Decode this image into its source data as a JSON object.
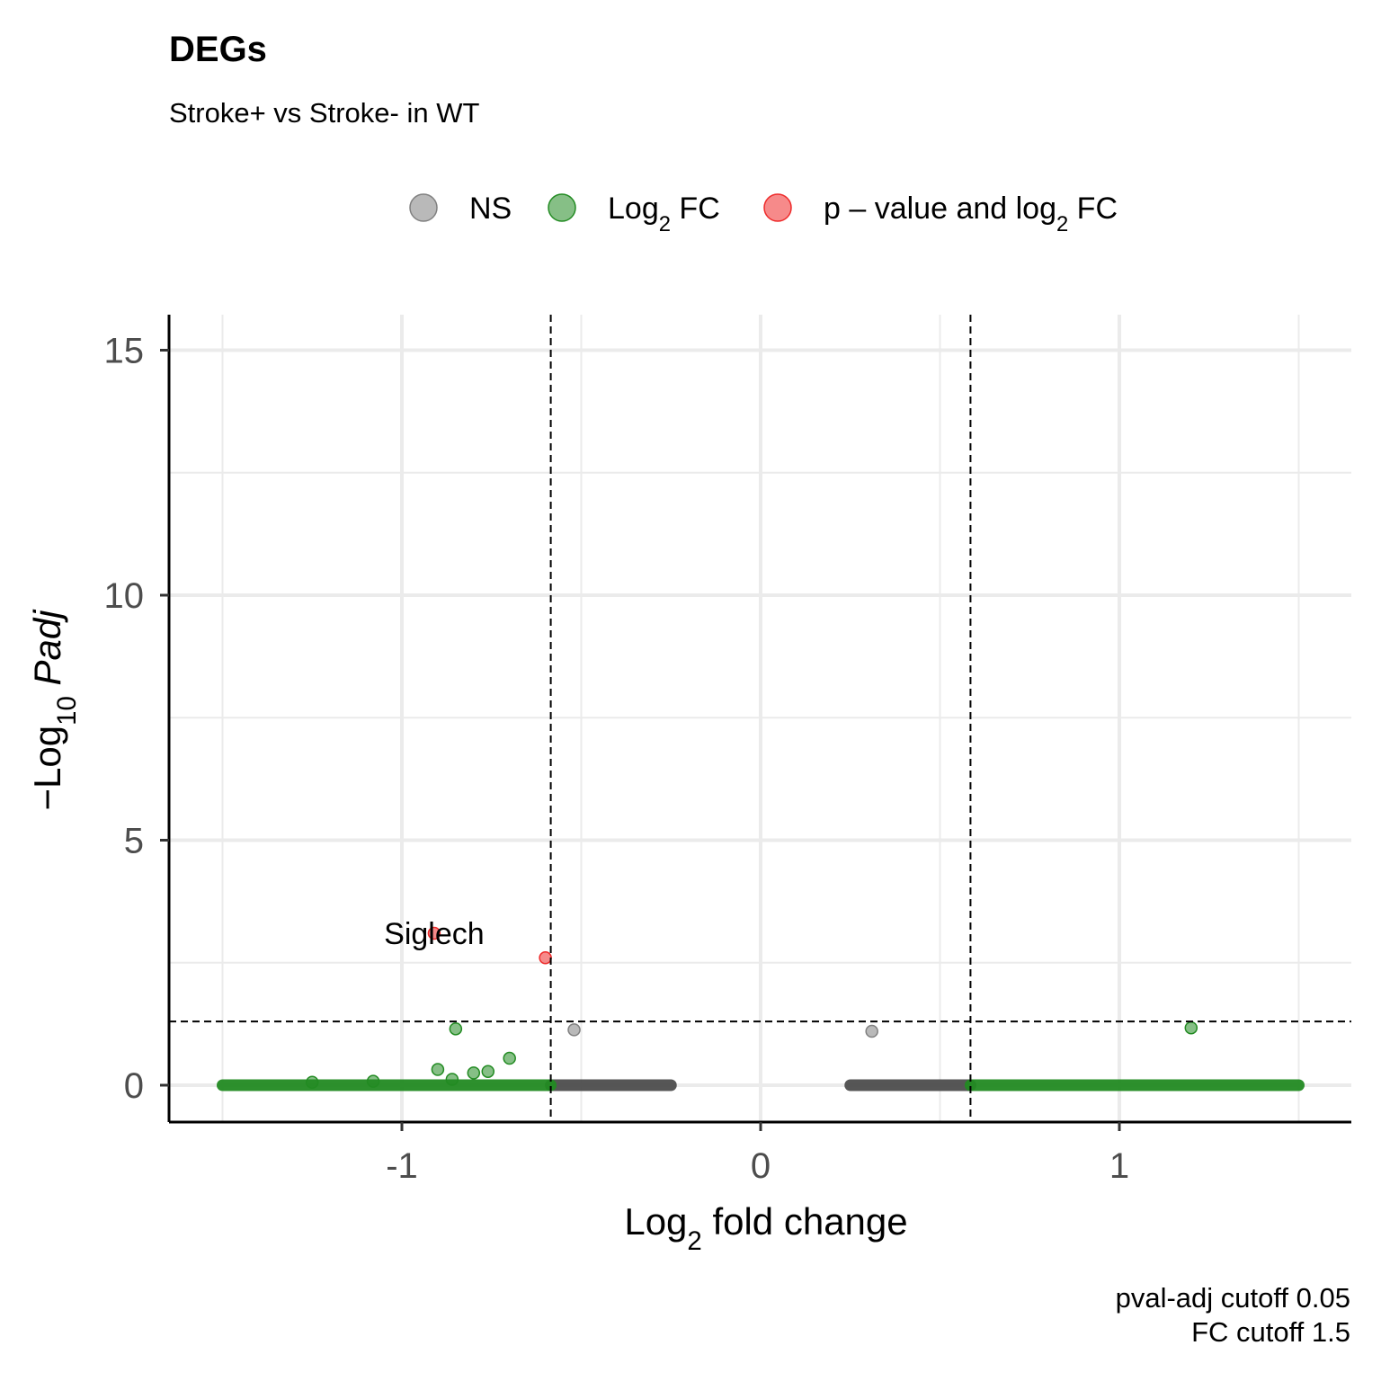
{
  "chart_data": {
    "type": "scatter",
    "title": "DEGs",
    "subtitle": "Stroke+ vs Stroke- in WT",
    "xlabel": {
      "main": "Log",
      "sub": "2",
      "rest": " fold change"
    },
    "ylabel": {
      "prefix": "−Log",
      "sub": "10",
      "italic": " Padj"
    },
    "xlim": [
      -1.5,
      1.5
    ],
    "ylim": [
      0,
      15
    ],
    "x_ticks": [
      -1,
      0,
      1
    ],
    "x_tick_labels": [
      "-1",
      "0",
      "1"
    ],
    "y_ticks": [
      0,
      5,
      10,
      15
    ],
    "y_tick_labels": [
      "0",
      "5",
      "10",
      "15"
    ],
    "grid": true,
    "legend_position": "top",
    "legend": [
      {
        "key": "NS",
        "color": "#808080",
        "parts": [
          {
            "t": "NS"
          }
        ]
      },
      {
        "key": "FC",
        "color": "#228B22",
        "parts": [
          {
            "t": "Log"
          },
          {
            "t": "2",
            "sub": true
          },
          {
            "t": " FC"
          }
        ]
      },
      {
        "key": "P_FC",
        "color": "#ee2a2a",
        "parts": [
          {
            "t": "p – value and log"
          },
          {
            "t": "2",
            "sub": true
          },
          {
            "t": " FC"
          }
        ]
      }
    ],
    "cutoff_lines": {
      "fc_log2": [
        -0.585,
        0.585
      ],
      "padj_neglog10": 1.301
    },
    "caption_lines": [
      "pval-adj cutoff  0.05",
      "FC cutoff  1.5"
    ],
    "series": [
      {
        "name": "NS",
        "color": "#808080",
        "points": [
          [
            -0.52,
            1.13
          ],
          [
            0.31,
            1.1
          ]
        ],
        "bands": [
          {
            "x": [
              -0.585,
              -0.25
            ],
            "y": 0
          },
          {
            "x": [
              0.25,
              0.585
            ],
            "y": 0
          }
        ]
      },
      {
        "name": "Log2 FC",
        "color": "#228B22",
        "points": [
          [
            -0.85,
            1.15
          ],
          [
            -0.7,
            0.55
          ],
          [
            -0.9,
            0.32
          ],
          [
            -0.76,
            0.28
          ],
          [
            -0.8,
            0.25
          ],
          [
            -0.86,
            0.12
          ],
          [
            -1.08,
            0.08
          ],
          [
            -1.25,
            0.06
          ],
          [
            1.2,
            1.17
          ]
        ],
        "bands": [
          {
            "x": [
              -1.5,
              -0.585
            ],
            "y": 0
          },
          {
            "x": [
              0.585,
              1.5
            ],
            "y": 0
          }
        ]
      },
      {
        "name": "p - value and log2 FC",
        "color": "#ee2a2a",
        "points": [
          [
            -0.91,
            3.1
          ],
          [
            -0.6,
            2.6
          ]
        ]
      }
    ],
    "labels": [
      {
        "text": "Siglech",
        "x": -0.91,
        "y": 3.1
      }
    ]
  }
}
